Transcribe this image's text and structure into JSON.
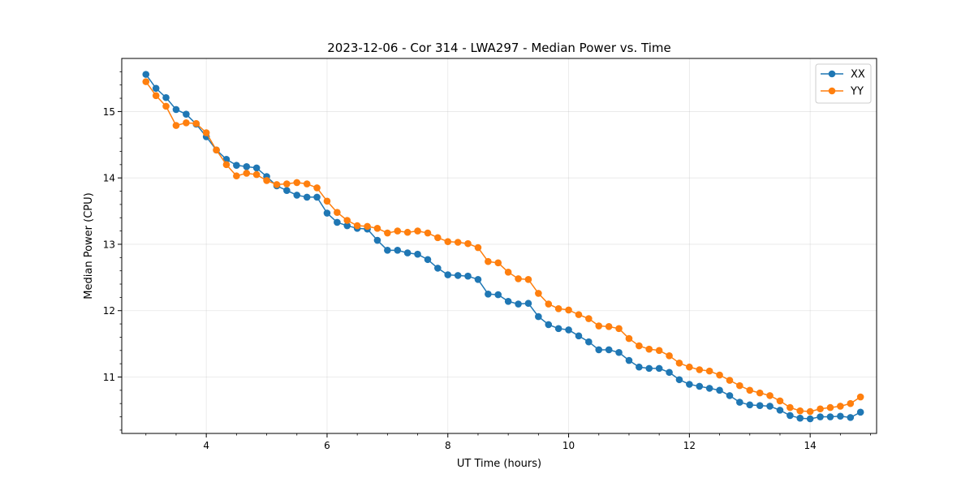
{
  "chart_data": {
    "type": "line",
    "title": "2023-12-06 - Cor 314 - LWA297 - Median Power vs. Time",
    "xlabel": "UT Time (hours)",
    "ylabel": "Median Power (CPU)",
    "xlim": [
      2.6,
      15.1
    ],
    "ylim": [
      10.15,
      15.8
    ],
    "xticks": [
      4,
      6,
      8,
      10,
      12,
      14
    ],
    "yticks": [
      11,
      12,
      13,
      14,
      15
    ],
    "grid": true,
    "legend_position": "top-right",
    "x": [
      3.0,
      3.167,
      3.333,
      3.5,
      3.667,
      3.833,
      4.0,
      4.167,
      4.333,
      4.5,
      4.667,
      4.833,
      5.0,
      5.167,
      5.333,
      5.5,
      5.667,
      5.833,
      6.0,
      6.167,
      6.333,
      6.5,
      6.667,
      6.833,
      7.0,
      7.167,
      7.333,
      7.5,
      7.667,
      7.833,
      8.0,
      8.167,
      8.333,
      8.5,
      8.667,
      8.833,
      9.0,
      9.167,
      9.333,
      9.5,
      9.667,
      9.833,
      10.0,
      10.167,
      10.333,
      10.5,
      10.667,
      10.833,
      11.0,
      11.167,
      11.333,
      11.5,
      11.667,
      11.833,
      12.0,
      12.167,
      12.333,
      12.5,
      12.667,
      12.833,
      13.0,
      13.167,
      13.333,
      13.5,
      13.667,
      13.833,
      14.0,
      14.167,
      14.333,
      14.5,
      14.667,
      14.833
    ],
    "series": [
      {
        "name": "XX",
        "color": "#1f77b4",
        "values": [
          15.56,
          15.35,
          15.21,
          15.03,
          14.96,
          14.81,
          14.62,
          14.42,
          14.28,
          14.19,
          14.17,
          14.15,
          14.02,
          13.88,
          13.81,
          13.74,
          13.71,
          13.71,
          13.47,
          13.33,
          13.28,
          13.24,
          13.23,
          13.06,
          12.91,
          12.91,
          12.87,
          12.85,
          12.77,
          12.64,
          12.54,
          12.53,
          12.52,
          12.47,
          12.25,
          12.24,
          12.14,
          12.1,
          12.11,
          11.91,
          11.79,
          11.73,
          11.71,
          11.62,
          11.53,
          11.41,
          11.41,
          11.37,
          11.25,
          11.15,
          11.13,
          11.13,
          11.07,
          10.96,
          10.89,
          10.86,
          10.83,
          10.8,
          10.72,
          10.62,
          10.58,
          10.57,
          10.56,
          10.5,
          10.42,
          10.38,
          10.37,
          10.4,
          10.4,
          10.41,
          10.39,
          10.47
        ]
      },
      {
        "name": "YY",
        "color": "#ff7f0e",
        "values": [
          15.45,
          15.24,
          15.08,
          14.79,
          14.83,
          14.82,
          14.68,
          14.42,
          14.2,
          14.03,
          14.07,
          14.05,
          13.96,
          13.9,
          13.91,
          13.93,
          13.91,
          13.85,
          13.65,
          13.48,
          13.36,
          13.28,
          13.27,
          13.24,
          13.17,
          13.2,
          13.18,
          13.2,
          13.17,
          13.1,
          13.04,
          13.03,
          13.01,
          12.95,
          12.74,
          12.72,
          12.58,
          12.48,
          12.47,
          12.26,
          12.1,
          12.03,
          12.01,
          11.94,
          11.88,
          11.77,
          11.76,
          11.73,
          11.58,
          11.47,
          11.42,
          11.4,
          11.32,
          11.21,
          11.15,
          11.11,
          11.09,
          11.03,
          10.95,
          10.87,
          10.8,
          10.76,
          10.72,
          10.64,
          10.54,
          10.49,
          10.48,
          10.52,
          10.54,
          10.56,
          10.6,
          10.7
        ]
      }
    ]
  }
}
